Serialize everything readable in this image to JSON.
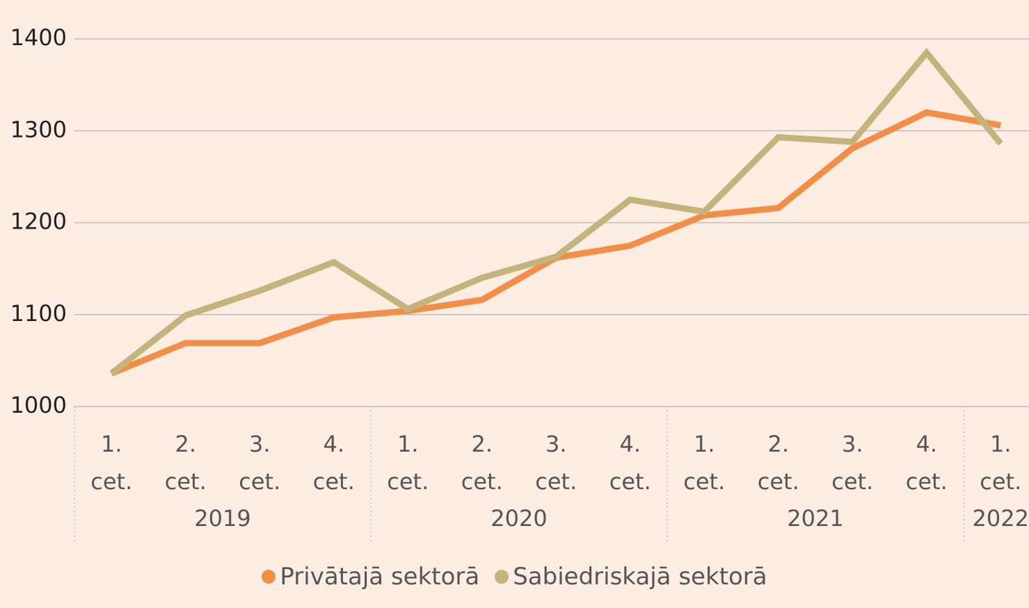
{
  "chart_data": {
    "type": "line",
    "categories": [
      "1. cet.",
      "2. cet.",
      "3. cet.",
      "4. cet.",
      "1. cet.",
      "2. cet.",
      "3. cet.",
      "4. cet.",
      "1. cet.",
      "2. cet.",
      "3. cet.",
      "4. cet.",
      "1. cet."
    ],
    "years": [
      "2019",
      "2020",
      "2021",
      "2022"
    ],
    "series": [
      {
        "name": "Privātajā sektorā",
        "color": "#f28e45",
        "values": [
          1036,
          1069,
          1069,
          1097,
          1104,
          1116,
          1162,
          1175,
          1208,
          1216,
          1281,
          1320,
          1306
        ]
      },
      {
        "name": "Sabiedriskajā sektorā",
        "color": "#c4b47c",
        "values": [
          1036,
          1099,
          1126,
          1157,
          1106,
          1140,
          1163,
          1225,
          1212,
          1293,
          1288,
          1385,
          1286
        ]
      }
    ],
    "ylim": [
      1000,
      1400
    ],
    "yticks": [
      1000,
      1100,
      1200,
      1300,
      1400
    ],
    "grid": true,
    "legend": "bottom"
  }
}
